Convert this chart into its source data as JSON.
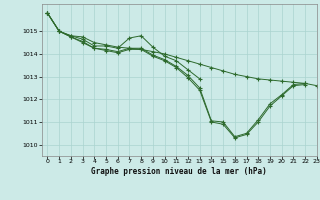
{
  "xlabel": "Graphe pression niveau de la mer (hPa)",
  "xlim": [
    -0.5,
    23
  ],
  "ylim": [
    1009.5,
    1016.2
  ],
  "yticks": [
    1010,
    1011,
    1012,
    1013,
    1014,
    1015
  ],
  "xticks": [
    0,
    1,
    2,
    3,
    4,
    5,
    6,
    7,
    8,
    9,
    10,
    11,
    12,
    13,
    14,
    15,
    16,
    17,
    18,
    19,
    20,
    21,
    22,
    23
  ],
  "bg_color": "#cceae7",
  "grid_color": "#aad4d0",
  "line_color": "#2d6a2d",
  "line1_x": [
    0,
    1,
    2,
    3,
    4,
    5,
    6,
    7,
    8,
    9,
    10,
    11,
    12,
    13,
    14,
    15,
    16,
    17,
    18,
    19,
    20,
    21,
    22,
    23
  ],
  "line1_y": [
    1015.8,
    1015.0,
    1014.8,
    1014.75,
    1014.5,
    1014.4,
    1014.3,
    1014.25,
    1014.2,
    1014.1,
    1014.0,
    1013.85,
    1013.7,
    1013.55,
    1013.4,
    1013.25,
    1013.1,
    1013.0,
    1012.9,
    1012.85,
    1012.8,
    1012.75,
    1012.7,
    1012.6
  ],
  "line2_x": [
    0,
    1,
    2,
    3,
    4,
    5,
    6,
    7,
    8,
    9,
    10,
    11,
    12,
    13
  ],
  "line2_y": [
    1015.8,
    1015.0,
    1014.8,
    1014.65,
    1014.35,
    1014.35,
    1014.25,
    1014.7,
    1014.8,
    1014.3,
    1013.9,
    1013.7,
    1013.3,
    1012.9
  ],
  "line3_x": [
    0,
    1,
    2,
    3,
    4,
    5,
    6,
    7,
    8,
    9,
    10,
    11,
    12,
    13,
    14,
    15,
    16,
    17,
    18,
    19,
    20,
    21,
    22
  ],
  "line3_y": [
    1015.8,
    1015.0,
    1014.75,
    1014.55,
    1014.25,
    1014.2,
    1014.1,
    1014.25,
    1014.25,
    1013.95,
    1013.75,
    1013.45,
    1013.05,
    1012.5,
    1011.05,
    1011.0,
    1010.35,
    1010.5,
    1011.1,
    1011.8,
    1012.2,
    1012.65,
    1012.7
  ],
  "line4_x": [
    0,
    1,
    2,
    3,
    4,
    5,
    6,
    7,
    8,
    9,
    10,
    11,
    12,
    13,
    14,
    15,
    16,
    17,
    18,
    19,
    20,
    21,
    22
  ],
  "line4_y": [
    1015.8,
    1015.0,
    1014.75,
    1014.5,
    1014.25,
    1014.15,
    1014.05,
    1014.2,
    1014.2,
    1013.9,
    1013.7,
    1013.4,
    1012.95,
    1012.4,
    1011.0,
    1010.9,
    1010.3,
    1010.45,
    1011.0,
    1011.7,
    1012.15,
    1012.6,
    1012.65
  ]
}
